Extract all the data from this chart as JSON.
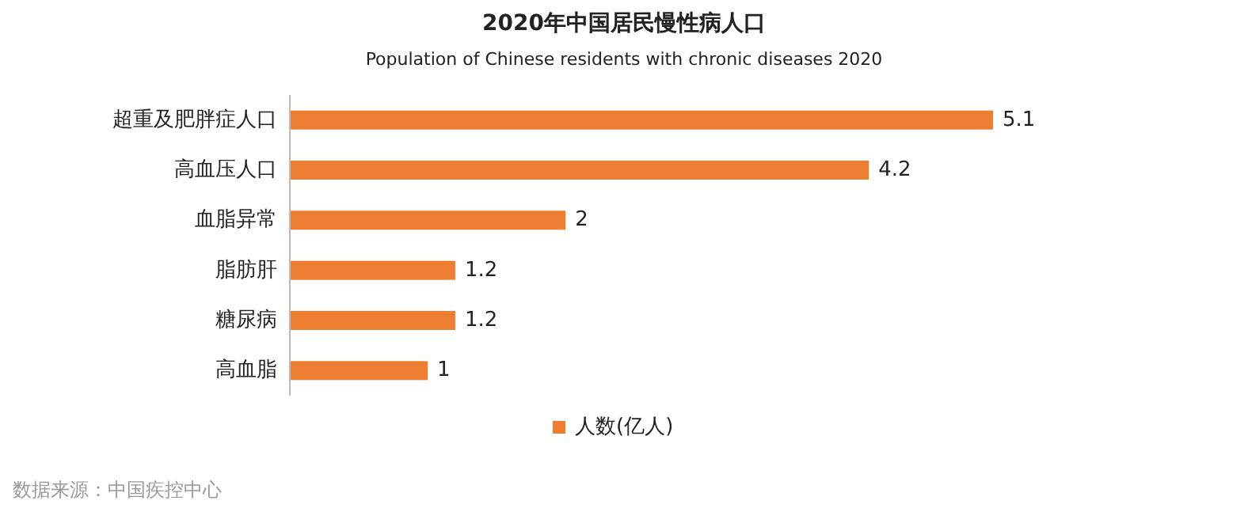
{
  "chart_data": {
    "type": "bar",
    "orientation": "horizontal",
    "title": "2020年中国居民慢性病人口",
    "subtitle": "Population of Chinese residents with chronic diseases 2020",
    "categories": [
      "超重及肥胖症人口",
      "高血压人口",
      "血脂异常",
      "脂肪肝",
      "糖尿病",
      "高血脂"
    ],
    "series": [
      {
        "name": "人数(亿人)",
        "color": "#ed7d31",
        "values": [
          5.1,
          4.2,
          2,
          1.2,
          1.2,
          1
        ]
      }
    ],
    "data_labels": true,
    "legend": "bottom",
    "annotations": [
      "数据来源：中国疾控中心"
    ]
  }
}
